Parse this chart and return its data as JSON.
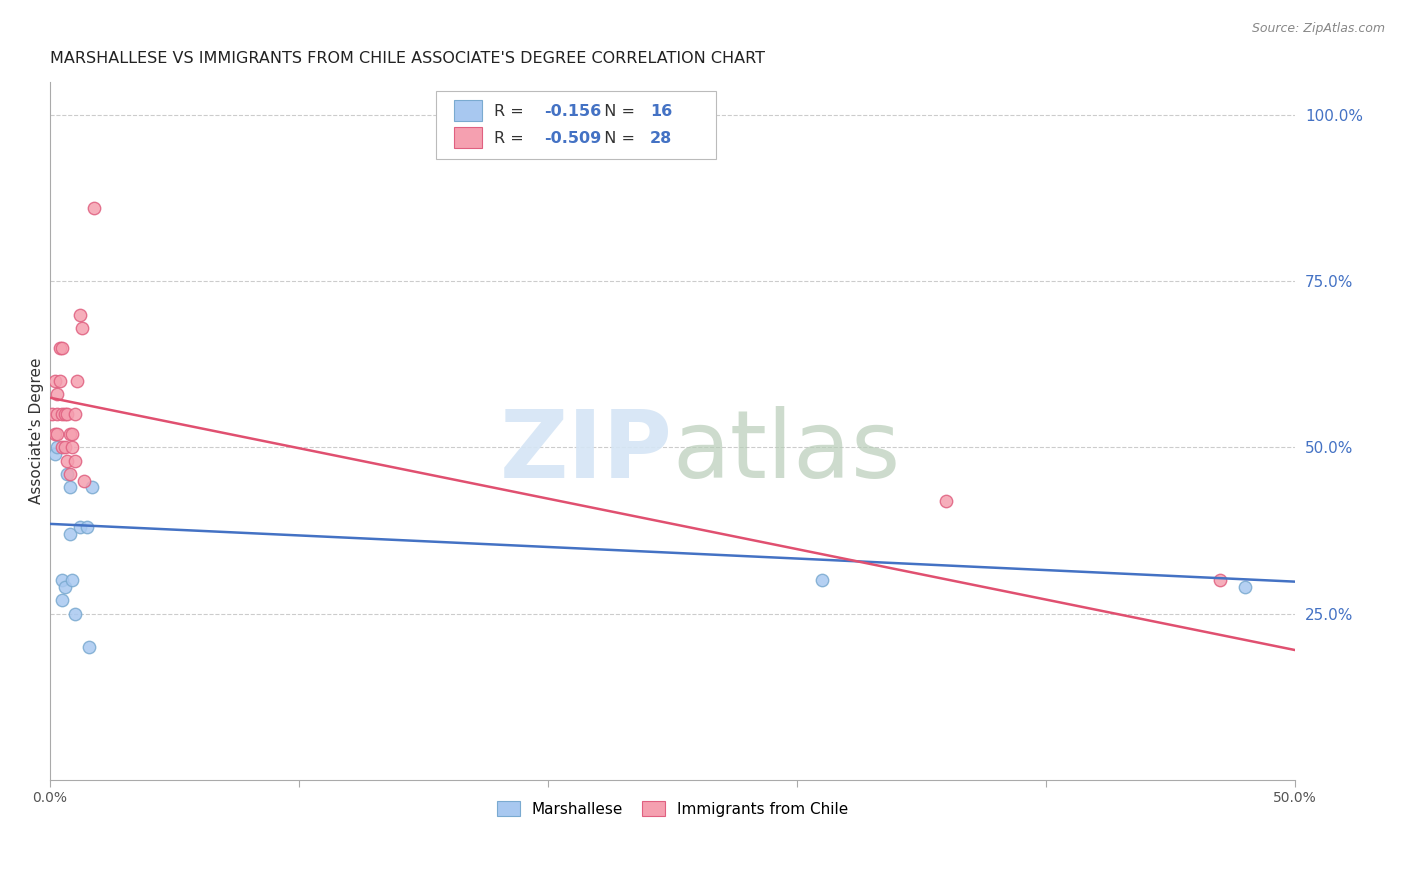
{
  "title": "MARSHALLESE VS IMMIGRANTS FROM CHILE ASSOCIATE'S DEGREE CORRELATION CHART",
  "source": "Source: ZipAtlas.com",
  "ylabel": "Associate's Degree",
  "right_yticks": [
    "100.0%",
    "75.0%",
    "50.0%",
    "25.0%"
  ],
  "right_ytick_vals": [
    1.0,
    0.75,
    0.5,
    0.25
  ],
  "xlim": [
    0.0,
    0.5
  ],
  "ylim": [
    0.0,
    1.05
  ],
  "blue_R": "-0.156",
  "blue_N": "16",
  "pink_R": "-0.509",
  "pink_N": "28",
  "blue_x": [
    0.002,
    0.003,
    0.005,
    0.005,
    0.006,
    0.007,
    0.008,
    0.008,
    0.009,
    0.01,
    0.012,
    0.015,
    0.016,
    0.017,
    0.31,
    0.48
  ],
  "blue_y": [
    0.49,
    0.5,
    0.3,
    0.27,
    0.29,
    0.46,
    0.44,
    0.37,
    0.3,
    0.25,
    0.38,
    0.38,
    0.2,
    0.44,
    0.3,
    0.29
  ],
  "pink_x": [
    0.001,
    0.002,
    0.002,
    0.003,
    0.003,
    0.003,
    0.004,
    0.004,
    0.005,
    0.005,
    0.005,
    0.006,
    0.006,
    0.007,
    0.007,
    0.008,
    0.008,
    0.009,
    0.009,
    0.01,
    0.01,
    0.011,
    0.012,
    0.013,
    0.014,
    0.018,
    0.36,
    0.47
  ],
  "pink_y": [
    0.55,
    0.6,
    0.52,
    0.58,
    0.55,
    0.52,
    0.65,
    0.6,
    0.65,
    0.55,
    0.5,
    0.55,
    0.5,
    0.55,
    0.48,
    0.52,
    0.46,
    0.52,
    0.5,
    0.55,
    0.48,
    0.6,
    0.7,
    0.68,
    0.45,
    0.86,
    0.42,
    0.3
  ],
  "blue_line_x": [
    0.0,
    0.5
  ],
  "blue_line_y": [
    0.385,
    0.298
  ],
  "pink_line_x": [
    0.0,
    0.5
  ],
  "pink_line_y": [
    0.575,
    0.195
  ],
  "blue_color": "#a8c8f0",
  "blue_edge": "#7aaad0",
  "pink_color": "#f5a0b0",
  "pink_edge": "#e06080",
  "blue_line_color": "#4472c4",
  "pink_line_color": "#e05070",
  "legend_value_color": "#4472c4",
  "grid_color": "#cccccc",
  "bg_color": "#ffffff",
  "marker_size": 80,
  "marker_linewidth": 1.0,
  "line_width": 1.8
}
